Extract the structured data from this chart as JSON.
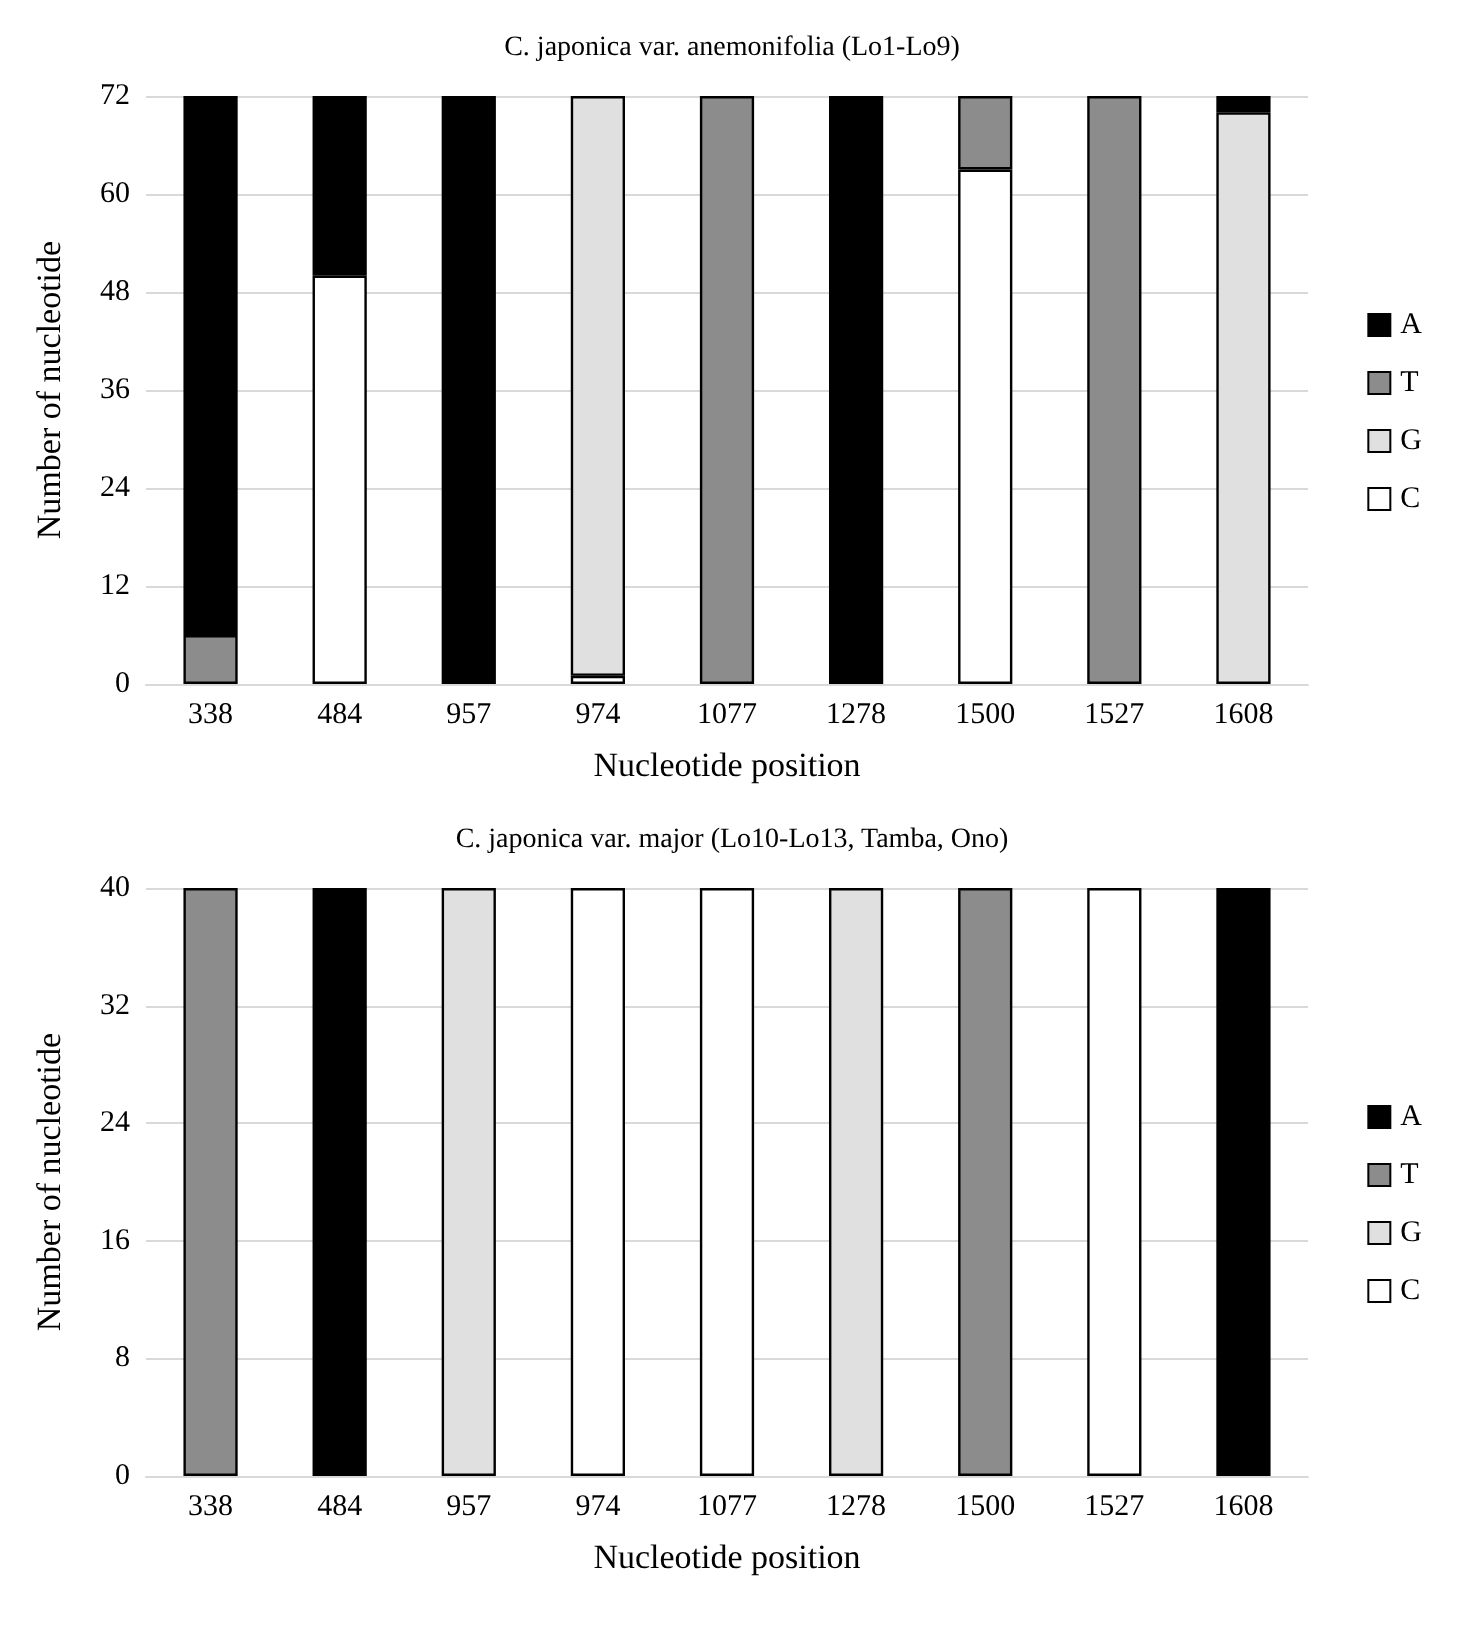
{
  "chart_data": [
    {
      "type": "bar",
      "title": "C. japonica var. anemonifolia (Lo1-Lo9)",
      "xlabel": "Nucleotide position",
      "ylabel": "Number of nucleotide",
      "categories": [
        "338",
        "484",
        "957",
        "974",
        "1077",
        "1278",
        "1500",
        "1527",
        "1608"
      ],
      "stacked": true,
      "legend": "right",
      "grid": "y",
      "ylim": [
        0,
        72
      ],
      "yticks": [
        0,
        12,
        24,
        36,
        48,
        60,
        72
      ],
      "series": [
        {
          "name": "C",
          "color": "#ffffff",
          "values": [
            null,
            50,
            null,
            1,
            null,
            null,
            63,
            null,
            null
          ]
        },
        {
          "name": "G",
          "color": "#e0e0e0",
          "values": [
            null,
            null,
            null,
            71,
            null,
            null,
            null,
            null,
            70
          ]
        },
        {
          "name": "T",
          "color": "#8c8c8c",
          "values": [
            6,
            null,
            null,
            null,
            72,
            null,
            9,
            72,
            null
          ]
        },
        {
          "name": "A",
          "color": "#000000",
          "values": [
            66,
            22,
            72,
            null,
            null,
            72,
            null,
            null,
            2
          ]
        }
      ]
    },
    {
      "type": "bar",
      "title": "C. japonica var. major (Lo10-Lo13, Tamba, Ono)",
      "xlabel": "Nucleotide position",
      "ylabel": "Number of nucleotide",
      "categories": [
        "338",
        "484",
        "957",
        "974",
        "1077",
        "1278",
        "1500",
        "1527",
        "1608"
      ],
      "stacked": true,
      "legend": "right",
      "grid": "y",
      "ylim": [
        0,
        40
      ],
      "yticks": [
        0,
        8,
        16,
        24,
        32,
        40
      ],
      "series": [
        {
          "name": "C",
          "color": "#ffffff",
          "values": [
            null,
            null,
            null,
            40,
            40,
            null,
            null,
            40,
            null
          ]
        },
        {
          "name": "G",
          "color": "#e0e0e0",
          "values": [
            null,
            null,
            40,
            null,
            null,
            40,
            null,
            null,
            null
          ]
        },
        {
          "name": "T",
          "color": "#8c8c8c",
          "values": [
            40,
            null,
            null,
            null,
            null,
            null,
            40,
            null,
            null
          ]
        },
        {
          "name": "A",
          "color": "#000000",
          "values": [
            null,
            40,
            null,
            null,
            null,
            null,
            null,
            null,
            40
          ]
        }
      ]
    }
  ]
}
